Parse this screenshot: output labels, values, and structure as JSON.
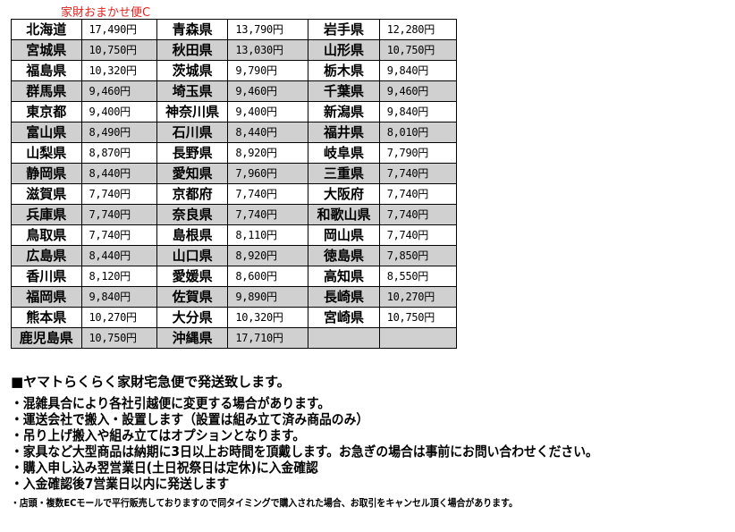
{
  "title": "家財おまかせ便C",
  "rows": [
    [
      [
        "北海道",
        "17,490円"
      ],
      [
        "青森県",
        "13,790円"
      ],
      [
        "岩手県",
        "12,280円"
      ]
    ],
    [
      [
        "宮城県",
        "10,750円"
      ],
      [
        "秋田県",
        "13,030円"
      ],
      [
        "山形県",
        "10,750円"
      ]
    ],
    [
      [
        "福島県",
        "10,320円"
      ],
      [
        "茨城県",
        "9,790円"
      ],
      [
        "栃木県",
        "9,840円"
      ]
    ],
    [
      [
        "群馬県",
        "9,460円"
      ],
      [
        "埼玉県",
        "9,460円"
      ],
      [
        "千葉県",
        "9,460円"
      ]
    ],
    [
      [
        "東京都",
        "9,400円"
      ],
      [
        "神奈川県",
        "9,400円"
      ],
      [
        "新潟県",
        "9,840円"
      ]
    ],
    [
      [
        "富山県",
        "8,490円"
      ],
      [
        "石川県",
        "8,440円"
      ],
      [
        "福井県",
        "8,010円"
      ]
    ],
    [
      [
        "山梨県",
        "8,870円"
      ],
      [
        "長野県",
        "8,920円"
      ],
      [
        "岐阜県",
        "7,790円"
      ]
    ],
    [
      [
        "静岡県",
        "8,440円"
      ],
      [
        "愛知県",
        "7,960円"
      ],
      [
        "三重県",
        "7,740円"
      ]
    ],
    [
      [
        "滋賀県",
        "7,740円"
      ],
      [
        "京都府",
        "7,740円"
      ],
      [
        "大阪府",
        "7,740円"
      ]
    ],
    [
      [
        "兵庫県",
        "7,740円"
      ],
      [
        "奈良県",
        "7,740円"
      ],
      [
        "和歌山県",
        "7,740円"
      ]
    ],
    [
      [
        "鳥取県",
        "7,740円"
      ],
      [
        "島根県",
        "8,110円"
      ],
      [
        "岡山県",
        "7,740円"
      ]
    ],
    [
      [
        "広島県",
        "8,440円"
      ],
      [
        "山口県",
        "8,920円"
      ],
      [
        "徳島県",
        "7,850円"
      ]
    ],
    [
      [
        "香川県",
        "8,120円"
      ],
      [
        "愛媛県",
        "8,600円"
      ],
      [
        "高知県",
        "8,550円"
      ]
    ],
    [
      [
        "福岡県",
        "9,840円"
      ],
      [
        "佐賀県",
        "9,890円"
      ],
      [
        "長崎県",
        "10,270円"
      ]
    ],
    [
      [
        "熊本県",
        "10,270円"
      ],
      [
        "大分県",
        "10,320円"
      ],
      [
        "宮崎県",
        "10,750円"
      ]
    ],
    [
      [
        "鹿児島県",
        "10,750円"
      ],
      [
        "沖縄県",
        "17,710円"
      ],
      [
        "",
        ""
      ]
    ]
  ],
  "notes": {
    "heading": "■ヤマトらくらく家財宅急便で発送致します。",
    "bullets": [
      "・混雑具合により各社引越便に変更する場合があります。",
      "・運送会社で搬入・設置します（設置は組み立て済み商品のみ）",
      "・吊り上げ搬入や組み立てはオプションとなります。",
      "・家具など大型商品は納期に3日以上お時間を頂戴します。お急ぎの場合は事前にお問い合わせください。",
      "・購入申し込み翌営業日(土日祝祭日は定休)に入金確認",
      "・入金確認後7営業日以内に発送します"
    ],
    "small": "・店頭・複数ECモールで平行販売しておりますので同タイミングで購入された場合、お取引をキャンセル頂く場合があります。"
  }
}
